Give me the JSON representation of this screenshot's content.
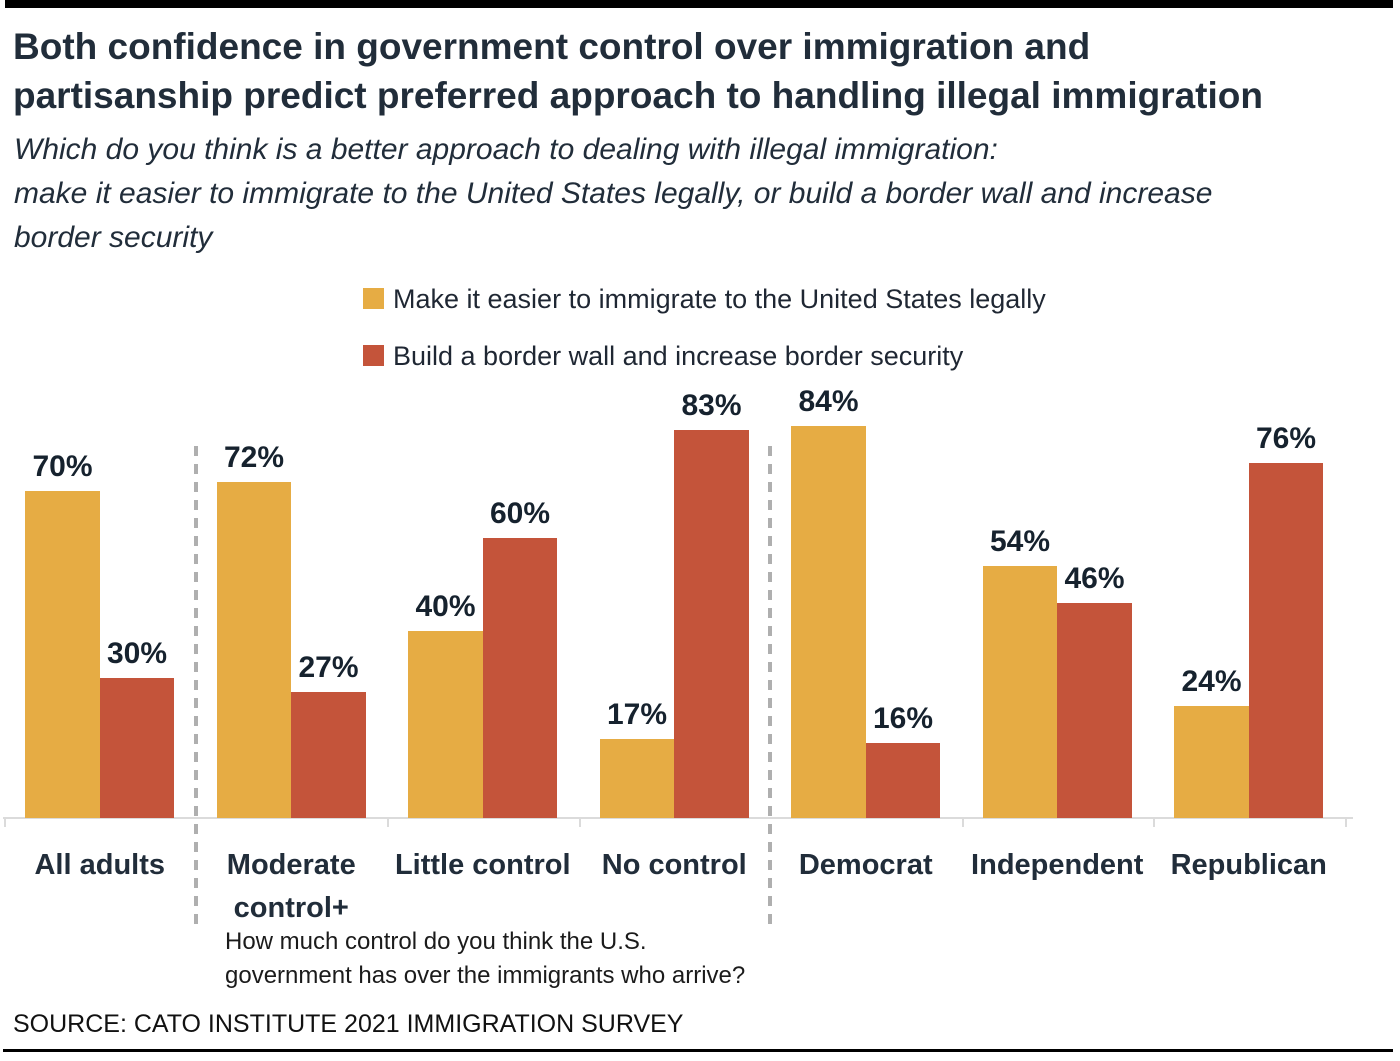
{
  "header": {
    "title_line1": "Both confidence in government control over immigration and",
    "title_line2": "partisanship predict preferred approach to handling illegal immigration",
    "subtitle_line1": "Which do you think is a better approach to dealing with illegal immigration:",
    "subtitle_line2": "make it easier to immigrate to the United States legally, or build a border wall and increase",
    "subtitle_line3": "border security"
  },
  "legend": {
    "items": [
      {
        "label": "Make it easier to immigrate to the United States legally",
        "color": "#E6AC44"
      },
      {
        "label": "Build a border wall and increase border security",
        "color": "#C4543A"
      }
    ]
  },
  "chart_data": {
    "type": "bar",
    "categories": [
      "All adults",
      "Moderate control+",
      "Little control",
      "No control",
      "Democrat",
      "Independent",
      "Republican"
    ],
    "series": [
      {
        "name": "Make it easier to immigrate to the United States legally",
        "color": "#E6AC44",
        "values": [
          70,
          72,
          40,
          17,
          84,
          54,
          24
        ]
      },
      {
        "name": "Build a border wall and increase border security",
        "color": "#C4543A",
        "values": [
          30,
          27,
          60,
          83,
          16,
          46,
          76
        ]
      }
    ],
    "value_label_suffix": "%",
    "ylim": [
      0,
      100
    ],
    "grid": false,
    "legend_position": "top-left-of-plot",
    "separators_after_category_index": [
      0,
      3
    ],
    "separator_color": "#AFAFAF",
    "axis_color": "#DBDBDB",
    "footnote_line1": "How much control do you think the U.S.",
    "footnote_line2": "government has over the immigrants who arrive?"
  },
  "footer": {
    "source": "SOURCE: CATO INSTITUTE 2021 IMMIGRATION SURVEY"
  }
}
